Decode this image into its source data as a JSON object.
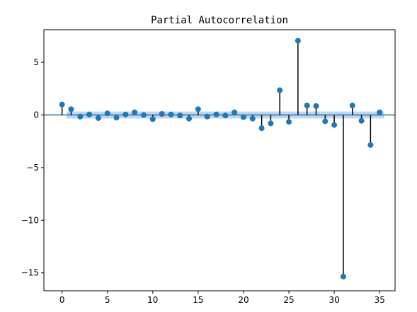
{
  "chart_data": {
    "type": "stem",
    "title": "Partial Autocorrelation",
    "xlabel": "",
    "ylabel": "",
    "xlim": [
      -2,
      36.7
    ],
    "ylim": [
      -16.7,
      8.1
    ],
    "xticks": [
      0,
      5,
      10,
      15,
      20,
      25,
      30,
      35
    ],
    "yticks": [
      5,
      0,
      -5,
      -10,
      -15
    ],
    "xtick_labels": [
      "0",
      "5",
      "10",
      "15",
      "20",
      "25",
      "30",
      "35"
    ],
    "ytick_labels": [
      "5",
      "0",
      "−5",
      "−10",
      "−15"
    ],
    "grid": false,
    "lags": [
      0,
      1,
      2,
      3,
      4,
      5,
      6,
      7,
      8,
      9,
      10,
      11,
      12,
      13,
      14,
      15,
      16,
      17,
      18,
      19,
      20,
      21,
      22,
      23,
      24,
      25,
      26,
      27,
      28,
      29,
      30,
      31,
      32,
      33,
      34,
      35
    ],
    "values": [
      1.0,
      0.55,
      -0.15,
      0.05,
      -0.3,
      0.15,
      -0.25,
      0.05,
      0.25,
      0.0,
      -0.4,
      0.1,
      0.05,
      -0.05,
      -0.35,
      0.55,
      -0.15,
      0.05,
      -0.05,
      0.25,
      -0.2,
      -0.35,
      -1.25,
      -0.8,
      2.35,
      -0.65,
      7.05,
      0.9,
      0.85,
      -0.6,
      -0.95,
      -15.35,
      0.9,
      -0.55,
      -2.85,
      0.25
    ],
    "confidence_band": 0.33,
    "colors": {
      "marker": "#1f77b4",
      "stem": "#000000",
      "baseline": "#1f77b4",
      "band": "#aec7e8"
    }
  }
}
